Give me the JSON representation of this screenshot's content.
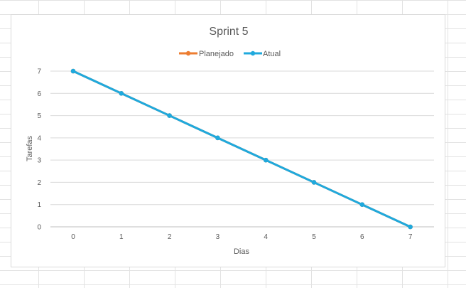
{
  "chart_data": {
    "type": "line",
    "title": "Sprint 5",
    "xlabel": "Dias",
    "ylabel": "Tarefas",
    "x": [
      0,
      1,
      2,
      3,
      4,
      5,
      6,
      7
    ],
    "ylim": [
      0,
      7
    ],
    "y_ticks": [
      0,
      1,
      2,
      3,
      4,
      5,
      6,
      7
    ],
    "grid": true,
    "legend_position": "top",
    "series": [
      {
        "name": "Planejado",
        "color": "#ED7D31",
        "values": [
          7,
          6,
          5,
          4,
          3,
          2,
          1,
          0
        ]
      },
      {
        "name": "Atual",
        "color": "#1FA9DD",
        "values": [
          7,
          6,
          5,
          4,
          3,
          2,
          1,
          0
        ]
      }
    ]
  }
}
